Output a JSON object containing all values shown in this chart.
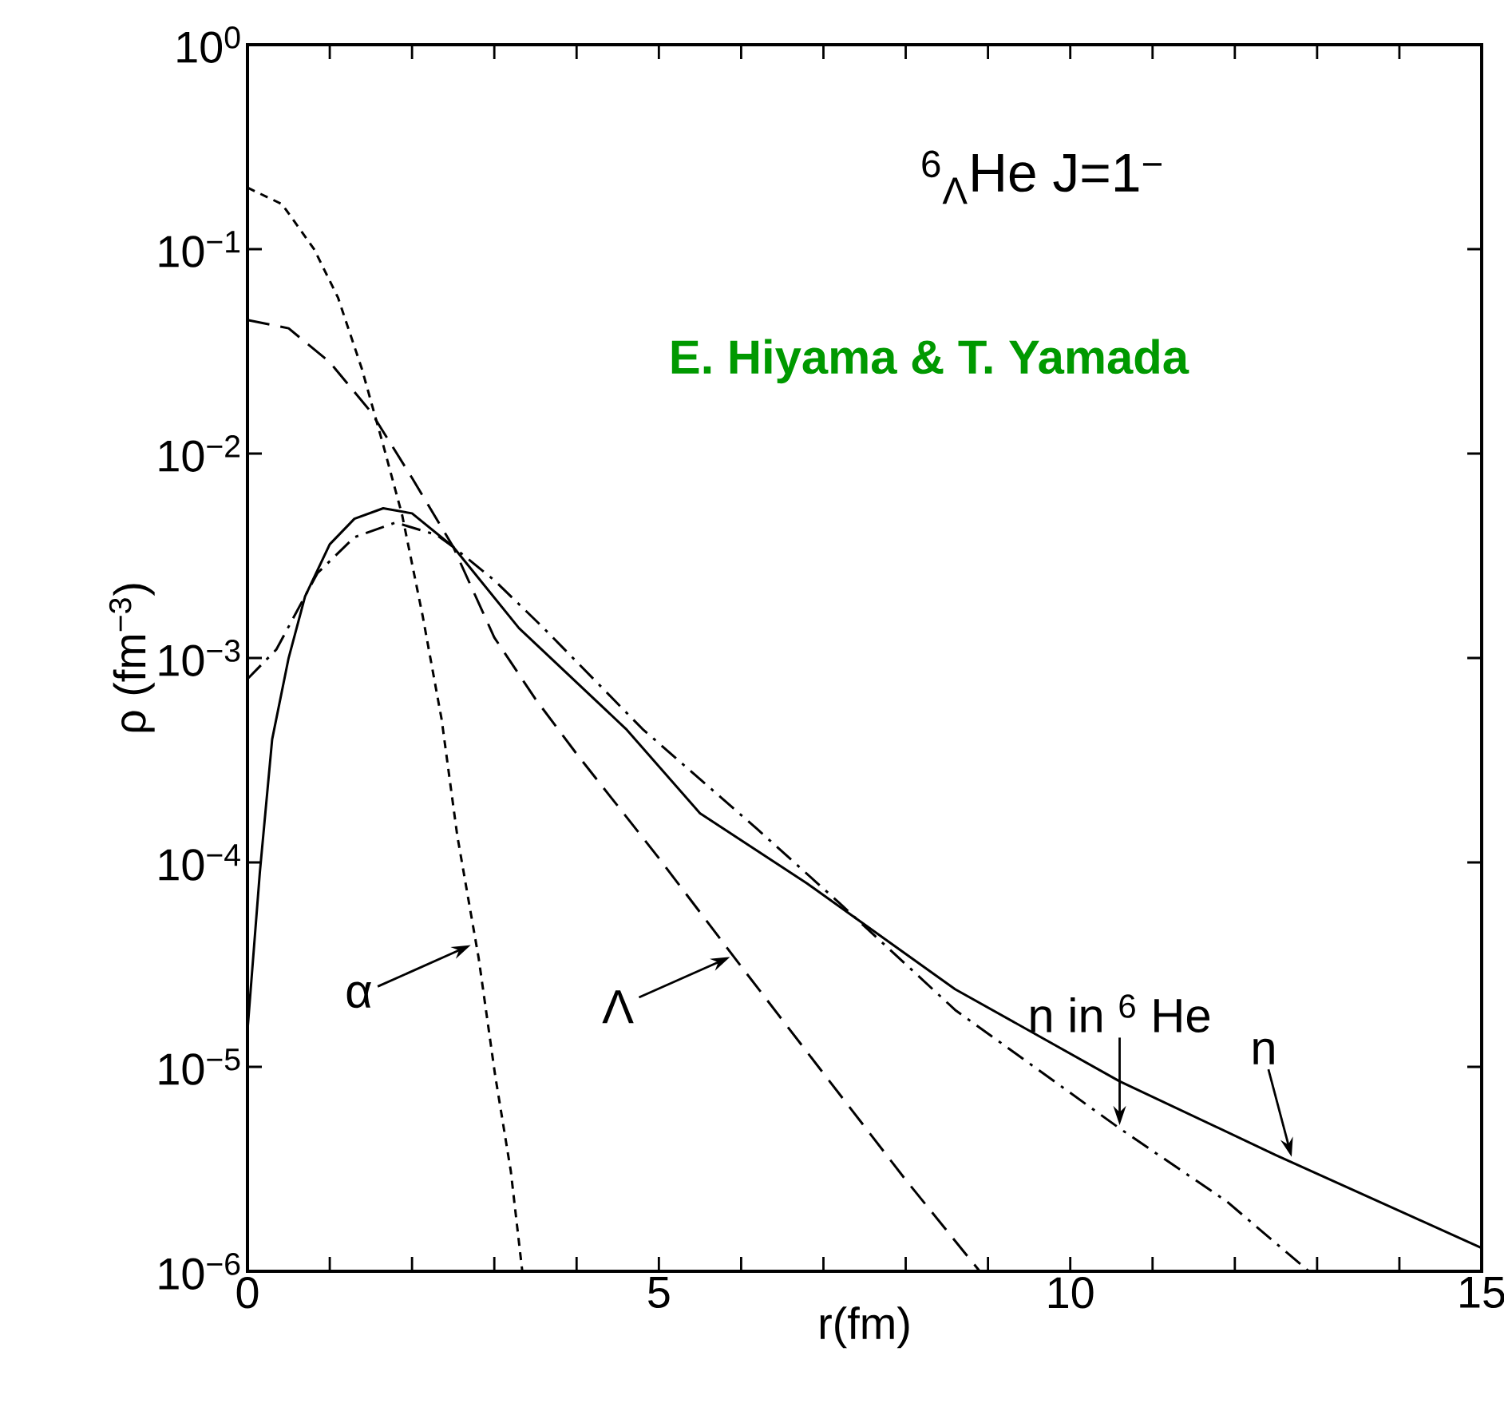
{
  "chart_data": {
    "type": "line",
    "title": "$^{6}$$_{Λ}$He   J=1$^{−}$",
    "subtitle": "E. Hiyama & T. Yamada",
    "xlabel": "r(fm)",
    "ylabel": "ρ (fm$^{−3}$)",
    "log": "y",
    "marker": "none",
    "xlim": [
      0,
      15
    ],
    "ylim": [
      1e-06,
      1
    ],
    "xticks": [
      0,
      {
        "value": 1,
        "label": null
      },
      {
        "value": 2,
        "label": null
      },
      {
        "value": 3,
        "label": null
      },
      {
        "value": 4,
        "label": null
      },
      5,
      {
        "value": 6,
        "label": null
      },
      {
        "value": 7,
        "label": null
      },
      {
        "value": 8,
        "label": null
      },
      {
        "value": 9,
        "label": null
      },
      10,
      {
        "value": 11,
        "label": null
      },
      {
        "value": 12,
        "label": null
      },
      {
        "value": 13,
        "label": null
      },
      {
        "value": 14,
        "label": null
      },
      15
    ],
    "yticks": [
      {
        "value": 1e-06,
        "label": "10$^{−6}$"
      },
      {
        "value": 1e-05,
        "label": "10$^{−5}$"
      },
      {
        "value": 0.0001,
        "label": "10$^{−4}$"
      },
      {
        "value": 0.001,
        "label": "10$^{−3}$"
      },
      {
        "value": 0.01,
        "label": "10$^{−2}$"
      },
      {
        "value": 0.1,
        "label": "10$^{−1}$"
      },
      {
        "value": 1,
        "label": "10$^{0}$"
      }
    ],
    "series": [
      {
        "color": "#000000",
        "line_style": "dotted",
        "x": [
          0,
          0.42,
          0.81,
          1.1,
          1.39,
          1.65,
          1.88,
          2.13,
          2.36,
          2.55,
          2.81,
          3.01,
          3.2,
          3.34
        ],
        "values": [
          0.2,
          0.166,
          0.1,
          0.058,
          0.026,
          0.011,
          0.005,
          0.0016,
          0.0005,
          0.000135,
          3.4e-05,
          9.1e-06,
          3.1e-06,
          1e-06
        ]
      },
      {
        "color": "#000000",
        "line_style": "dashed",
        "x": [
          0,
          0.5,
          1.0,
          1.5,
          2.0,
          2.5,
          3.0,
          3.5,
          4.0,
          5.0,
          6.0,
          7.0,
          8.0,
          8.9
        ],
        "values": [
          0.045,
          0.041,
          0.028,
          0.016,
          0.0076,
          0.0035,
          0.00126,
          0.00063,
          0.00034,
          0.000105,
          3.1e-05,
          9.3e-06,
          2.8e-06,
          1e-06
        ]
      },
      {
        "color": "#000000",
        "line_style": "dashdot",
        "x": [
          0,
          0.35,
          0.85,
          1.3,
          1.8,
          2.3,
          2.5,
          3.0,
          3.6,
          4.8,
          6.2,
          7.2,
          8.6,
          10.6,
          11.9,
          12.9
        ],
        "values": [
          0.00079,
          0.0011,
          0.0026,
          0.0039,
          0.0046,
          0.004,
          0.0035,
          0.0024,
          0.0014,
          0.00045,
          0.000145,
          6.3e-05,
          1.9e-05,
          5e-06,
          2.2e-06,
          1e-06
        ]
      },
      {
        "color": "#000000",
        "line_style": "solid",
        "x": [
          0,
          0.15,
          0.3,
          0.5,
          0.7,
          1.0,
          1.3,
          1.65,
          2.0,
          2.5,
          3.3,
          4.6,
          5.5,
          6.8,
          8.6,
          10.6,
          12.5,
          15
        ],
        "values": [
          1.5e-05,
          8.9e-05,
          0.0004,
          0.001,
          0.002,
          0.0036,
          0.0048,
          0.0054,
          0.0051,
          0.0035,
          0.0014,
          0.00045,
          0.000174,
          7.9e-05,
          2.4e-05,
          8.5e-06,
          3.7e-06,
          1.3e-06
        ]
      }
    ],
    "annotations": [
      {
        "text": "α",
        "x": 2.75,
        "y": 4e-05
      },
      {
        "text": "Λ",
        "x": 5.9,
        "y": 3.5e-05
      },
      {
        "text": "n in $^{6}$ He",
        "x": 10.6,
        "y": 5e-06
      },
      {
        "text": "n",
        "x": 12.7,
        "y": 3.5e-06
      }
    ]
  }
}
